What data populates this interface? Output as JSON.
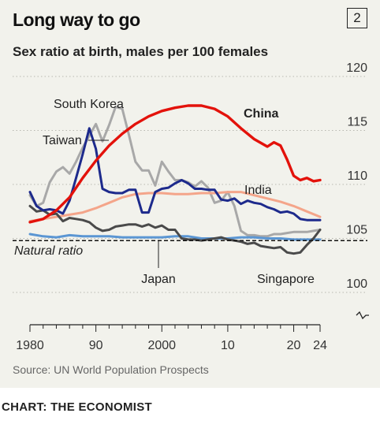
{
  "header": {
    "title": "Long way to go",
    "chart_number": "2",
    "subtitle": "Sex ratio at birth, males per 100 females"
  },
  "footer": {
    "source": "Source: UN World Population Prospects",
    "credit": "CHART: THE ECONOMIST"
  },
  "chart_data": {
    "type": "line",
    "title": "Long way to go",
    "subtitle": "Sex ratio at birth, males per 100 females",
    "xlabel": "",
    "ylabel": "",
    "xlim": [
      1980,
      2024
    ],
    "ylim": [
      100,
      120
    ],
    "y_ticks": [
      100,
      105,
      110,
      115,
      120
    ],
    "y_tick_labels": [
      "100",
      "105",
      "110",
      "115",
      "120"
    ],
    "x_ticks": [
      1980,
      1990,
      2000,
      2010,
      2020,
      2024
    ],
    "x_tick_labels": [
      "1980",
      "90",
      "2000",
      "10",
      "20",
      "24"
    ],
    "grid": "horizontal",
    "y_axis_break": true,
    "reference_line": {
      "label": "Natural ratio",
      "value": 104.8
    },
    "series": [
      {
        "name": "China",
        "color": "#e3120b",
        "bold_label": true,
        "x": [
          1980,
          1982,
          1984,
          1986,
          1988,
          1990,
          1992,
          1994,
          1996,
          1998,
          2000,
          2002,
          2004,
          2006,
          2008,
          2010,
          2012,
          2014,
          2016,
          2017,
          2018,
          2019,
          2020,
          2021,
          2022,
          2023,
          2024
        ],
        "y": [
          106.5,
          106.8,
          107.6,
          108.8,
          110.6,
          112.2,
          113.6,
          114.7,
          115.6,
          116.3,
          116.8,
          117.1,
          117.3,
          117.3,
          117.0,
          116.3,
          115.2,
          114.2,
          113.5,
          113.9,
          113.6,
          112.3,
          110.8,
          110.4,
          110.6,
          110.3,
          110.4
        ]
      },
      {
        "name": "South Korea",
        "color": "#a8a8a8",
        "x": [
          1980,
          1981,
          1982,
          1983,
          1984,
          1985,
          1986,
          1987,
          1988,
          1989,
          1990,
          1991,
          1992,
          1993,
          1994,
          1995,
          1996,
          1997,
          1998,
          1999,
          2000,
          2001,
          2002,
          2003,
          2004,
          2005,
          2006,
          2007,
          2008,
          2009,
          2010,
          2011,
          2012,
          2013,
          2014,
          2015,
          2016,
          2017,
          2018,
          2019,
          2020,
          2021,
          2022,
          2023,
          2024
        ],
        "y": [
          109.0,
          108.0,
          108.3,
          110.2,
          111.2,
          111.6,
          111.0,
          112.1,
          113.4,
          114.5,
          115.6,
          114.0,
          115.5,
          117.2,
          117.0,
          114.6,
          112.1,
          111.3,
          111.3,
          109.9,
          112.1,
          111.2,
          110.4,
          110.4,
          110.2,
          109.8,
          110.3,
          109.7,
          108.3,
          108.5,
          109.3,
          108.0,
          105.7,
          105.3,
          105.3,
          105.2,
          105.2,
          105.4,
          105.4,
          105.5,
          105.6,
          105.6,
          105.6,
          105.7,
          105.8
        ]
      },
      {
        "name": "Taiwan",
        "color": "#1d2a8c",
        "x": [
          1980,
          1981,
          1982,
          1983,
          1984,
          1985,
          1986,
          1987,
          1988,
          1989,
          1990,
          1991,
          1992,
          1993,
          1994,
          1995,
          1996,
          1997,
          1998,
          1999,
          2000,
          2001,
          2002,
          2003,
          2004,
          2005,
          2006,
          2007,
          2008,
          2009,
          2010,
          2011,
          2012,
          2013,
          2014,
          2015,
          2016,
          2017,
          2018,
          2019,
          2020,
          2021,
          2022,
          2023,
          2024
        ],
        "y": [
          109.3,
          108.0,
          107.6,
          107.7,
          107.6,
          107.3,
          108.5,
          110.6,
          112.8,
          115.2,
          113.3,
          109.6,
          109.3,
          109.2,
          109.2,
          109.5,
          109.5,
          107.4,
          107.4,
          109.3,
          109.6,
          109.7,
          110.1,
          110.4,
          110.1,
          109.6,
          109.6,
          109.5,
          109.5,
          108.6,
          108.5,
          108.7,
          108.2,
          108.5,
          108.3,
          108.2,
          107.9,
          107.7,
          107.4,
          107.5,
          107.3,
          106.8,
          106.7,
          106.7,
          106.7
        ]
      },
      {
        "name": "India",
        "color": "#f4a58a",
        "x": [
          1980,
          1982,
          1984,
          1986,
          1988,
          1990,
          1992,
          1994,
          1996,
          1998,
          2000,
          2002,
          2004,
          2006,
          2008,
          2010,
          2012,
          2014,
          2016,
          2018,
          2020,
          2022,
          2024
        ],
        "y": [
          106.6,
          106.8,
          107.0,
          107.2,
          107.4,
          107.8,
          108.3,
          108.8,
          109.1,
          109.2,
          109.2,
          109.1,
          109.1,
          109.2,
          109.2,
          109.3,
          109.3,
          109.0,
          108.7,
          108.4,
          108.0,
          107.5,
          107.0
        ]
      },
      {
        "name": "Japan",
        "color": "#5b96d3",
        "x": [
          1980,
          1982,
          1984,
          1986,
          1988,
          1990,
          1992,
          1994,
          1996,
          1998,
          2000,
          2002,
          2004,
          2006,
          2008,
          2010,
          2012,
          2014,
          2016,
          2018,
          2020,
          2022,
          2024
        ],
        "y": [
          105.4,
          105.2,
          105.1,
          105.3,
          105.2,
          105.2,
          105.2,
          105.1,
          105.1,
          105.1,
          105.1,
          105.2,
          105.2,
          105.0,
          105.0,
          105.0,
          105.1,
          105.1,
          105.0,
          105.0,
          104.9,
          104.9,
          104.9
        ]
      },
      {
        "name": "Singapore",
        "color": "#4a4a4a",
        "x": [
          1980,
          1981,
          1982,
          1983,
          1984,
          1985,
          1986,
          1987,
          1988,
          1989,
          1990,
          1991,
          1992,
          1993,
          1994,
          1995,
          1996,
          1997,
          1998,
          1999,
          2000,
          2001,
          2002,
          2003,
          2004,
          2005,
          2006,
          2007,
          2008,
          2009,
          2010,
          2011,
          2012,
          2013,
          2014,
          2015,
          2016,
          2017,
          2018,
          2019,
          2020,
          2021,
          2022,
          2023,
          2024
        ],
        "y": [
          108.0,
          107.5,
          107.6,
          107.2,
          107.3,
          106.6,
          106.9,
          106.8,
          106.7,
          106.5,
          106.0,
          105.7,
          105.8,
          106.1,
          106.2,
          106.3,
          106.3,
          106.1,
          106.3,
          106.0,
          106.2,
          105.8,
          105.8,
          105.0,
          104.9,
          104.9,
          104.8,
          104.9,
          105.0,
          105.1,
          104.9,
          104.8,
          104.7,
          104.5,
          104.6,
          104.3,
          104.2,
          104.1,
          104.2,
          103.7,
          103.6,
          103.7,
          104.4,
          105.0,
          105.8
        ]
      }
    ]
  }
}
